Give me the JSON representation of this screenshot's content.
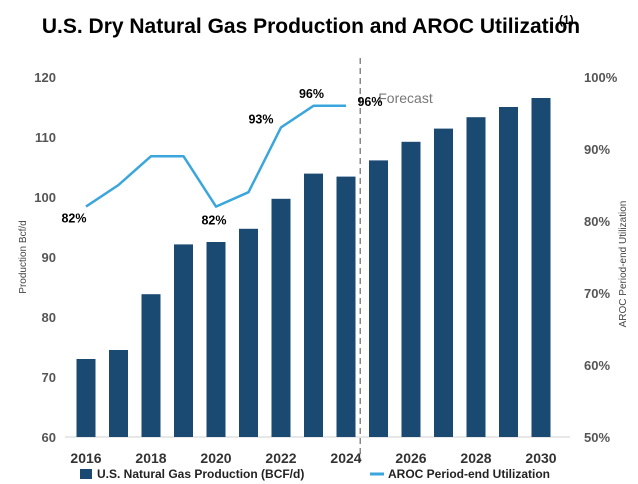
{
  "chart_data": {
    "type": "bar",
    "title": "U.S. Dry Natural Gas Production and AROC Utilization",
    "title_note": "(1)",
    "ylabel": "Production Bcf/d",
    "y2label": "AROC Period-end Utilization",
    "ylim": [
      60,
      120
    ],
    "yticks": [
      "60",
      "70",
      "80",
      "90",
      "100",
      "110",
      "120"
    ],
    "y2lim": [
      50,
      100
    ],
    "y2ticks": [
      "50%",
      "60%",
      "70%",
      "80%",
      "90%",
      "100%"
    ],
    "x": [
      2016,
      2017,
      2018,
      2019,
      2020,
      2021,
      2022,
      2023,
      2024,
      2025,
      2026,
      2027,
      2028,
      2029,
      2030
    ],
    "xticks": [
      "2016",
      "2018",
      "2020",
      "2022",
      "2024",
      "2026",
      "2028",
      "2030"
    ],
    "forecast_label": "Forecast",
    "forecast_start": 2025,
    "series": [
      {
        "name": "U.S. Natural Gas Production (BCF/d)",
        "type": "bar",
        "axis": "left",
        "color": "#1a4a72",
        "values": [
          73.0,
          74.5,
          83.8,
          92.1,
          92.5,
          94.7,
          99.7,
          103.9,
          103.4,
          106.1,
          109.2,
          111.4,
          113.3,
          115.0,
          116.5
        ]
      },
      {
        "name": "AROC Period-end Utilization",
        "type": "line",
        "axis": "right",
        "color": "#3aa6dc",
        "x": [
          2016,
          2017,
          2018,
          2019,
          2020,
          2021,
          2022,
          2023,
          2024
        ],
        "values": [
          82,
          85,
          89,
          89,
          82,
          84,
          93,
          96,
          96
        ],
        "labels": [
          {
            "x": 2016,
            "text": "82%"
          },
          {
            "x": 2020,
            "text": "82%"
          },
          {
            "x": 2022,
            "text": "93%"
          },
          {
            "x": 2023,
            "text": "96%"
          },
          {
            "x": 2024,
            "text": "96%"
          }
        ]
      }
    ],
    "legend": "bottom",
    "grid": false
  }
}
